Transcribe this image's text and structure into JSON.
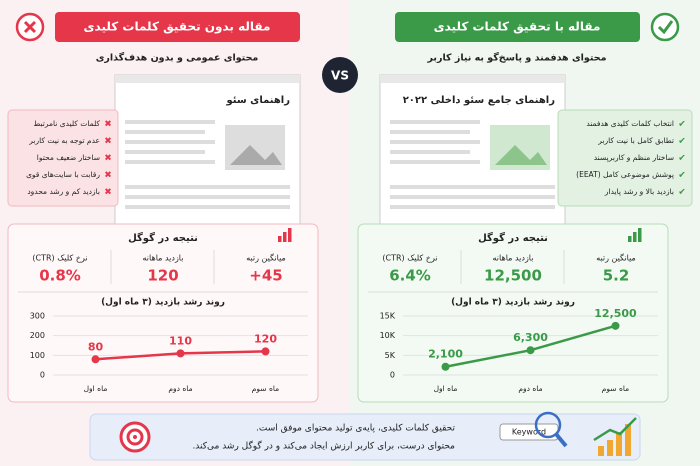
{
  "vs": "VS",
  "panels": [
    {
      "title": "مقاله بدون تحقیق کلمات کلیدی",
      "subtitle": "محتوای عمومی و بدون هدف‌گذاری",
      "doc_title": "راهنمای سئو",
      "points": [
        "کلمات کلیدی نامرتبط",
        "عدم توجه به نیت کاربر",
        "ساختار ضعیف محتوا",
        "رقابت با سایت‌های قوی",
        "بازدید کم و رشد محدود"
      ],
      "result_title": "نتیجه در گوگل",
      "metrics": [
        {
          "label": "میانگین رتبه",
          "value": "45+"
        },
        {
          "label": "بازدید ماهانه",
          "value": "120"
        },
        {
          "label": "نرخ کلیک (CTR)",
          "value": "0.8%"
        }
      ]
    },
    {
      "title": "مقاله با تحقیق کلمات کلیدی",
      "subtitle": "محتوای هدفمند و پاسخ‌گو به نیاز کاربر",
      "doc_title": "راهنمای جامع سئو داخلی ۲۰۲۲",
      "points": [
        "انتخاب کلمات کلیدی هدفمند",
        "تطابق کامل با نیت کاربر",
        "ساختار منظم و کاربرپسند",
        "پوشش موضوعی کامل (EEAT)",
        "بازدید بالا و رشد پایدار"
      ],
      "result_title": "نتیجه در گوگل",
      "metrics": [
        {
          "label": "میانگین رتبه",
          "value": "5.2"
        },
        {
          "label": "بازدید ماهانه",
          "value": "12,500"
        },
        {
          "label": "نرخ کلیک (CTR)",
          "value": "6.4%"
        }
      ]
    }
  ],
  "chart_data": [
    {
      "type": "line",
      "title": "روند رشد بازدید (۳ ماه اول)",
      "categories": [
        "ماه اول",
        "ماه دوم",
        "ماه سوم"
      ],
      "values": [
        80,
        110,
        120
      ],
      "color": "#e5364a",
      "ylim": [
        0,
        300
      ],
      "yticks": [
        0,
        100,
        200,
        300
      ],
      "grid": true
    },
    {
      "type": "line",
      "title": "روند رشد بازدید (۳ ماه اول)",
      "categories": [
        "ماه اول",
        "ماه دوم",
        "ماه سوم"
      ],
      "values": [
        2100,
        6300,
        12500
      ],
      "value_labels": [
        "2,100",
        "6,300",
        "12,500"
      ],
      "color": "#3a9a48",
      "ylim": [
        0,
        15000
      ],
      "yticks": [
        0,
        {
          "value": 5000,
          "label": "5K"
        },
        {
          "value": 10000,
          "label": "10K"
        },
        {
          "value": 15000,
          "label": "15K"
        }
      ],
      "grid": true
    }
  ],
  "footer": {
    "lines": [
      "تحقیق کلمات کلیدی، پایه‌ی تولید محتوای موفق است.",
      "محتوای درست، برای کاربر ارزش ایجاد می‌کند و در گوگل رشد می‌کند."
    ],
    "keyword": "Keyword"
  }
}
